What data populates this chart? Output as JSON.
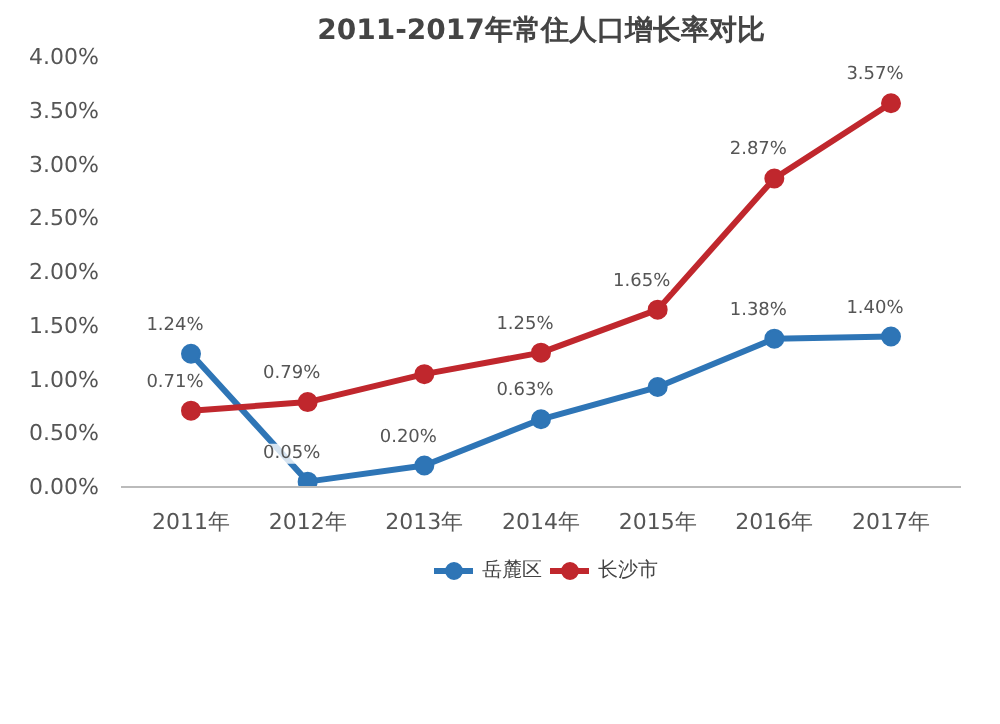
{
  "chart_data": {
    "type": "line",
    "title": "2011-2017年常住人口增长率对比",
    "categories": [
      "2011年",
      "2012年",
      "2013年",
      "2014年",
      "2015年",
      "2016年",
      "2017年"
    ],
    "series": [
      {
        "name": "岳麓区",
        "color": "#2e75b6",
        "values": [
          1.24,
          0.05,
          0.2,
          0.63,
          0.93,
          1.38,
          1.4
        ],
        "value_labels": [
          "1.24%",
          "0.05%",
          "0.20%",
          "0.63%",
          null,
          "1.38%",
          "1.40%"
        ]
      },
      {
        "name": "长沙市",
        "color": "#c0272d",
        "values": [
          0.71,
          0.79,
          1.05,
          1.25,
          1.65,
          2.87,
          3.57
        ],
        "value_labels": [
          "0.71%",
          "0.79%",
          null,
          "1.25%",
          "1.65%",
          "2.87%",
          "3.57%"
        ]
      }
    ],
    "ylim": [
      0,
      4
    ],
    "yticks": [
      {
        "value": 0,
        "label": "0.00%"
      },
      {
        "value": 0.5,
        "label": "0.50%"
      },
      {
        "value": 1,
        "label": "1.00%"
      },
      {
        "value": 1.5,
        "label": "1.50%"
      },
      {
        "value": 2,
        "label": "2.00%"
      },
      {
        "value": 2.5,
        "label": "2.50%"
      },
      {
        "value": 3,
        "label": "3.00%"
      },
      {
        "value": 3.5,
        "label": "3.50%"
      },
      {
        "value": 4,
        "label": "4.00%"
      }
    ],
    "marker": "circle",
    "line_style": "solid",
    "legend": "bottom",
    "grid": false
  }
}
